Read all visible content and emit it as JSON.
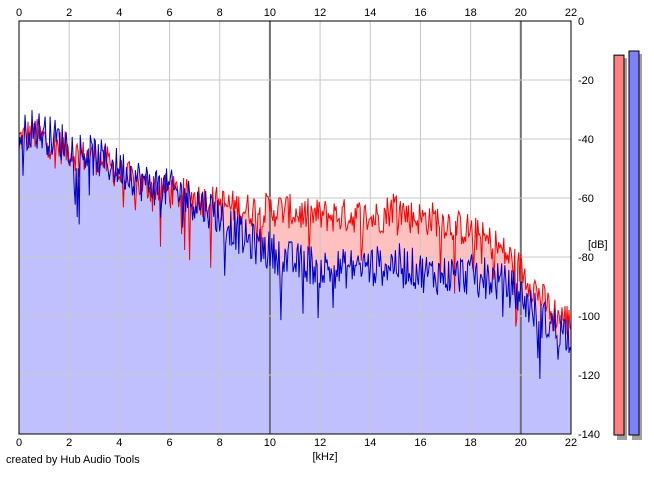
{
  "credit": "created by Hub Audio Tools",
  "chart_data": {
    "type": "area",
    "x_unit": "[kHz]",
    "y_unit": "[dB]",
    "xlim": [
      0,
      22
    ],
    "ylim": [
      -140,
      0
    ],
    "x_ticks": [
      "0",
      "2",
      "4",
      "6",
      "8",
      "10",
      "12",
      "14",
      "16",
      "18",
      "20",
      "22"
    ],
    "y_ticks": [
      "0",
      "-20",
      "-40",
      "-60",
      "-80",
      "-100",
      "-120",
      "-140"
    ],
    "grid": true,
    "colors": {
      "plot_bg": "#ffffff",
      "grid": "#c8c8c8",
      "grid_major": "#707070",
      "fill_blue": "#c0c0ff",
      "fill_red": "#ffc0c0",
      "line_red": "#ff0000",
      "line_blue": "#0000cc",
      "meter_red": "#ff8080",
      "meter_blue": "#8080ff"
    },
    "series": [
      {
        "color": "#ff0000",
        "x": [
          0,
          0.5,
          1,
          1.5,
          2,
          2.5,
          3,
          3.5,
          4,
          4.5,
          5,
          5.5,
          6,
          6.5,
          7,
          7.5,
          8,
          8.5,
          9,
          9.5,
          10,
          10.5,
          11,
          11.5,
          12,
          12.5,
          13,
          13.5,
          14,
          14.5,
          15,
          15.5,
          16,
          16.5,
          17,
          17.5,
          18,
          18.5,
          19,
          19.5,
          20,
          20.5,
          21,
          21.5,
          22
        ],
        "y": [
          -40,
          -38,
          -40,
          -42,
          -44,
          -46,
          -46,
          -48,
          -52,
          -54,
          -56,
          -56,
          -58,
          -59,
          -60,
          -61,
          -62,
          -63,
          -64,
          -64,
          -64,
          -64,
          -65,
          -66,
          -66,
          -66,
          -66,
          -66,
          -67,
          -66,
          -62,
          -66,
          -67,
          -67,
          -68,
          -70,
          -71,
          -74,
          -76,
          -80,
          -84,
          -90,
          -96,
          -100,
          -102
        ]
      },
      {
        "color": "#0000cc",
        "x": [
          0,
          0.5,
          1,
          1.5,
          2,
          2.5,
          3,
          3.5,
          4,
          4.5,
          5,
          5.5,
          6,
          6.5,
          7,
          7.5,
          8,
          8.5,
          9,
          9.5,
          10,
          10.5,
          11,
          11.5,
          12,
          12.5,
          13,
          13.5,
          14,
          14.5,
          15,
          15.5,
          16,
          16.5,
          17,
          17.5,
          18,
          18.5,
          19,
          19.5,
          20,
          20.5,
          21,
          21.5,
          22
        ],
        "y": [
          -40,
          -36,
          -38,
          -40,
          -42,
          -44,
          -46,
          -48,
          -50,
          -52,
          -55,
          -56,
          -57,
          -59,
          -61,
          -63,
          -66,
          -70,
          -74,
          -76,
          -78,
          -80,
          -82,
          -82,
          -84,
          -84,
          -84,
          -83,
          -83,
          -83,
          -82,
          -83,
          -85,
          -86,
          -86,
          -86,
          -86,
          -86,
          -88,
          -90,
          -93,
          -98,
          -102,
          -104,
          -106
        ]
      }
    ],
    "meters": [
      {
        "color": "#ff8080",
        "level": 0.99
      },
      {
        "color": "#8080ff",
        "level": 1.0
      }
    ]
  }
}
